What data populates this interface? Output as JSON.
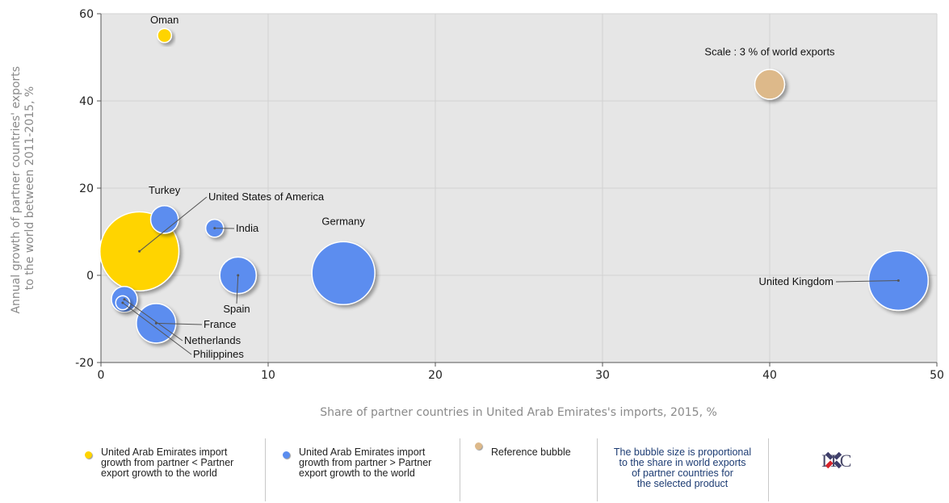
{
  "chart_data": {
    "type": "scatter",
    "xlabel": "Share of partner countries in United Arab Emirates's imports, 2015, %",
    "ylabel_lines": [
      "Annual growth of partner countries' exports",
      "to the world between 2011-2015, %"
    ],
    "xlim": [
      0,
      50
    ],
    "ylim": [
      -20,
      60
    ],
    "xticks": [
      0,
      10,
      20,
      30,
      40,
      50
    ],
    "yticks": [
      -20,
      0,
      20,
      40,
      60
    ],
    "grid": true,
    "series": [
      {
        "name": "United Arab Emirates import growth from partner < Partner export growth to the world",
        "color": "#ffd400",
        "points": [
          {
            "label": "Oman",
            "x": 3.8,
            "y": 55,
            "size": 0.15
          },
          {
            "label": "United States of America",
            "x": 2.3,
            "y": 5.5,
            "size": 14
          }
        ]
      },
      {
        "name": "United Arab Emirates import growth from partner > Partner export growth to the world",
        "color": "#5b8def",
        "points": [
          {
            "label": "Turkey",
            "x": 3.8,
            "y": 12.8,
            "size": 1.2
          },
          {
            "label": "India",
            "x": 6.8,
            "y": 10.8,
            "size": 0.35
          },
          {
            "label": "Germany",
            "x": 14.5,
            "y": 0.5,
            "size": 8.5
          },
          {
            "label": "United Kingdom",
            "x": 47.7,
            "y": -1.2,
            "size": 7.5
          },
          {
            "label": "Spain",
            "x": 8.2,
            "y": 0,
            "size": 2.4
          },
          {
            "label": "France",
            "x": 3.3,
            "y": -11,
            "size": 2.9
          },
          {
            "label": "Netherlands",
            "x": 1.4,
            "y": -5.5,
            "size": 1.0
          },
          {
            "label": "Philippines",
            "x": 1.3,
            "y": -6.3,
            "size": 0.15
          }
        ]
      },
      {
        "name": "Reference bubble",
        "color": "#ddb98a",
        "points": [
          {
            "label": "Scale : 3 % of world exports",
            "x": 40,
            "y": 43.8,
            "size": 1.45
          }
        ]
      }
    ]
  },
  "legend": {
    "item1": [
      "United Arab Emirates import",
      "growth from partner < Partner",
      "export growth to the world"
    ],
    "item2": [
      "United Arab Emirates import",
      "growth from partner > Partner",
      "export growth to the world"
    ],
    "item3": "Reference bubble",
    "note": [
      "The bubble size is proportional",
      "to the share in world exports",
      "of partner countries for",
      "the selected product"
    ],
    "colors": {
      "yellow": "#ffd400",
      "blue": "#5b8def",
      "tan": "#ddb98a"
    }
  },
  "logo": {
    "text": "ITC",
    "icon": "itc-logo-icon"
  }
}
